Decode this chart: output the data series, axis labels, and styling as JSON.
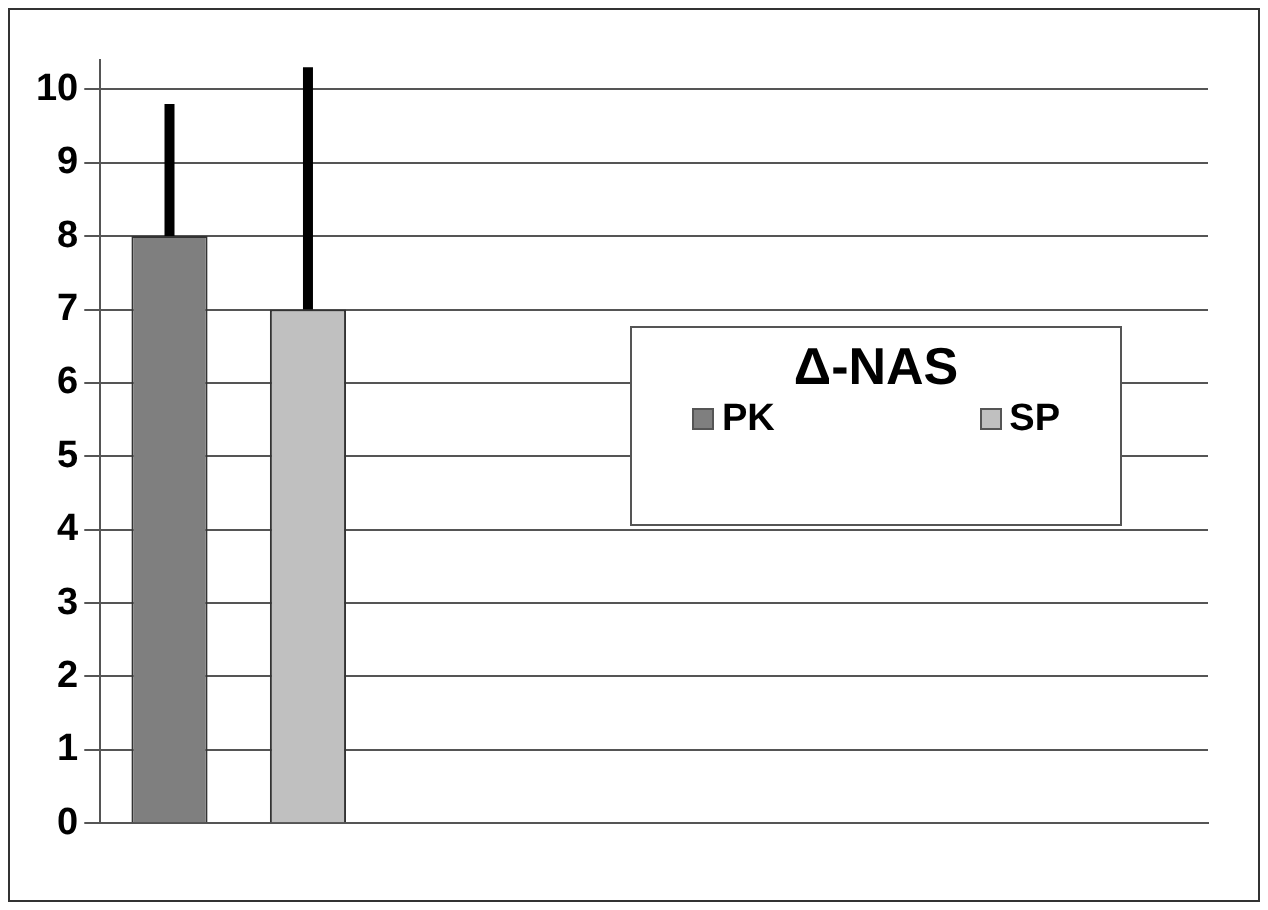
{
  "chart_data": {
    "type": "bar",
    "legend_title": "Δ-NAS",
    "categories": [
      null,
      null,
      null,
      null
    ],
    "series": [
      {
        "name": "PK",
        "color": "#7f7f7f",
        "values": [
          8,
          null,
          null,
          null
        ],
        "errors": [
          [
            8,
            9.8
          ],
          null,
          null,
          null
        ]
      },
      {
        "name": "SP",
        "color": "#c0c0c0",
        "values": [
          7,
          null,
          null,
          null
        ],
        "errors": [
          [
            7,
            10.3
          ],
          null,
          null,
          null
        ]
      }
    ],
    "ylim": [
      0,
      10.4
    ],
    "yticks": [
      0,
      1,
      2,
      3,
      4,
      5,
      6,
      7,
      8,
      9,
      10
    ],
    "grid": "y",
    "legend": "right"
  }
}
